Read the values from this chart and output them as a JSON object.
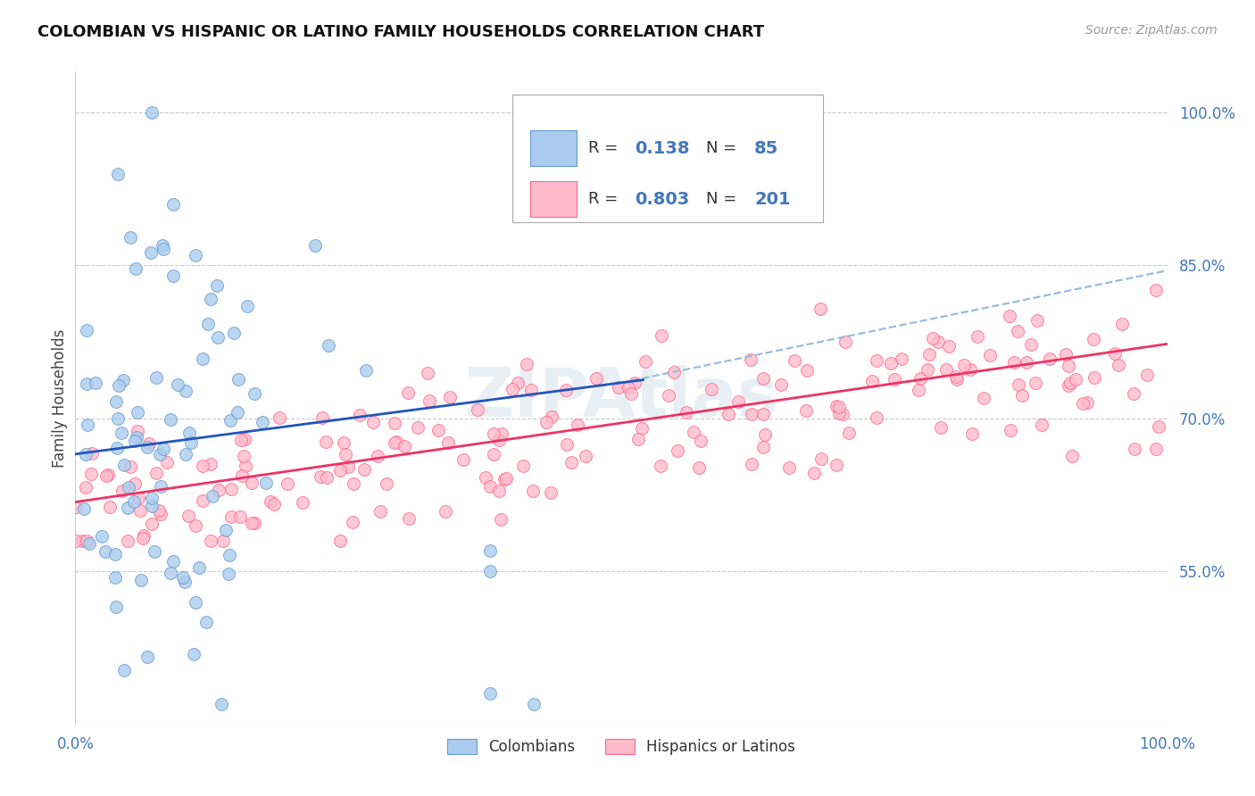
{
  "title": "COLOMBIAN VS HISPANIC OR LATINO FAMILY HOUSEHOLDS CORRELATION CHART",
  "source": "Source: ZipAtlas.com",
  "ylabel": "Family Households",
  "xlim": [
    0,
    1
  ],
  "ylim": [
    0.4,
    1.04
  ],
  "yticks": [
    0.55,
    0.7,
    0.85,
    1.0
  ],
  "ytick_labels": [
    "55.0%",
    "70.0%",
    "85.0%",
    "100.0%"
  ],
  "blue_R": 0.138,
  "blue_N": 85,
  "pink_R": 0.803,
  "pink_N": 201,
  "blue_dot_face": "#AACCEE",
  "blue_dot_edge": "#6699CC",
  "pink_dot_face": "#FFBBCC",
  "pink_dot_edge": "#FF6688",
  "blue_line_color": "#2255BB",
  "blue_dash_color": "#99BBDD",
  "pink_line_color": "#EE3366",
  "blue_label": "Colombians",
  "pink_label": "Hispanics or Latinos",
  "watermark": "ZIPAtlas",
  "background_color": "#FFFFFF",
  "grid_color": "#BBBBBB",
  "tick_color": "#4477BB",
  "title_color": "#111111",
  "source_color": "#999999"
}
